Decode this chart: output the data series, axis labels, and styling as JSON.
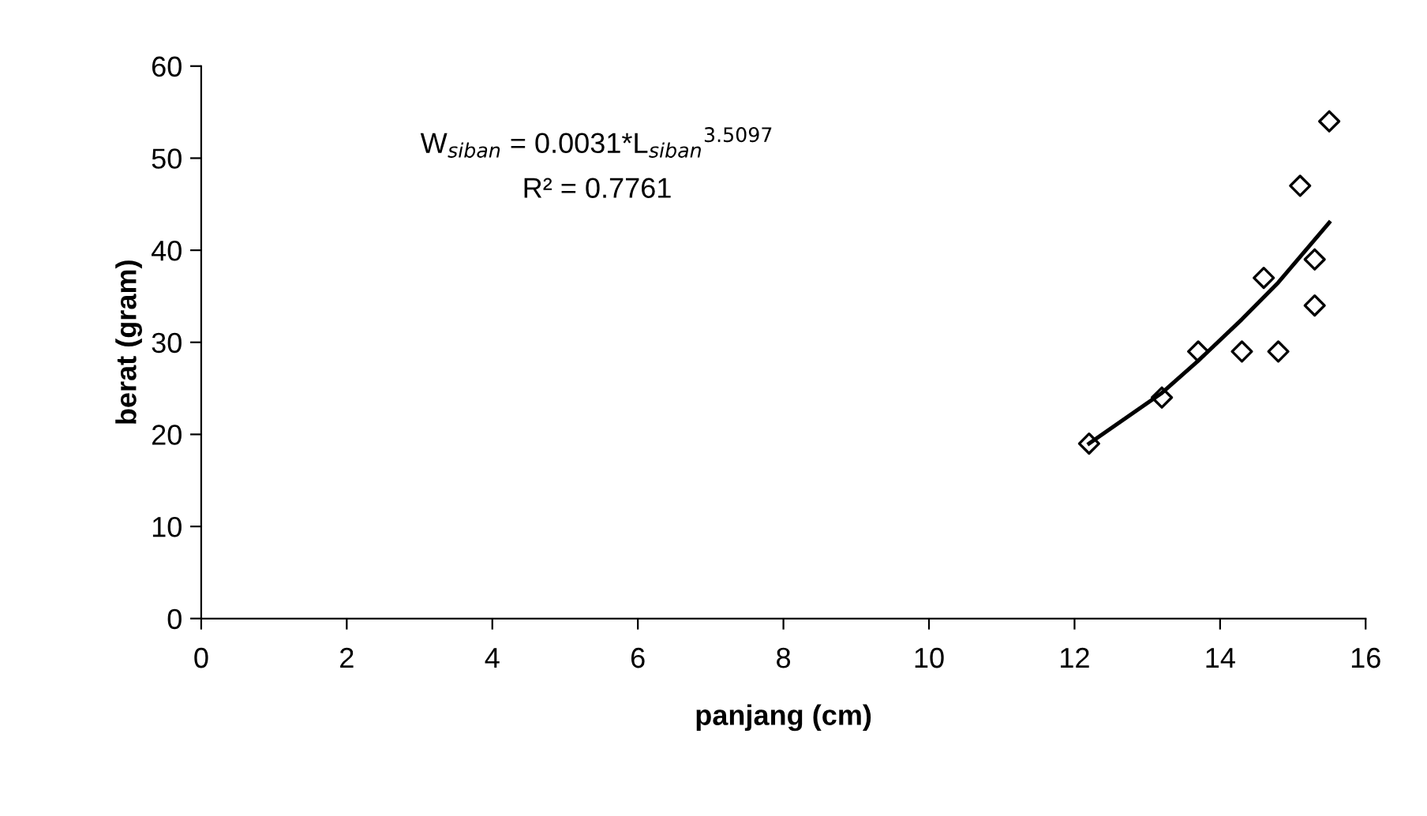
{
  "chart_data": {
    "type": "scatter",
    "xlabel": "panjang (cm)",
    "ylabel": "berat (gram)",
    "xlim": [
      0,
      16
    ],
    "ylim": [
      0,
      60
    ],
    "xticks": [
      0,
      2,
      4,
      6,
      8,
      10,
      12,
      14,
      16
    ],
    "yticks": [
      0,
      10,
      20,
      30,
      40,
      50,
      60
    ],
    "grid": false,
    "marker": "diamond",
    "series": [
      {
        "color": "#000000",
        "x": [
          12.2,
          13.2,
          13.7,
          14.3,
          14.8,
          14.6,
          15.3,
          15.3,
          15.1,
          15.5
        ],
        "values": [
          19,
          24,
          29,
          29,
          29,
          37,
          39,
          34,
          47,
          54
        ]
      },
      {
        "type": "line",
        "color": "#000000",
        "marker": "none",
        "line_style": "solid",
        "x": [
          12.2,
          13.2,
          13.7,
          14.3,
          14.8,
          15.5
        ],
        "values": [
          19,
          24.5,
          28,
          32.5,
          36.5,
          43
        ]
      }
    ],
    "annotations": [
      "W$_{siban}$ = 0.0031*L$_{siban}$$^{3.5097}$",
      "R² = 0.7761"
    ]
  }
}
